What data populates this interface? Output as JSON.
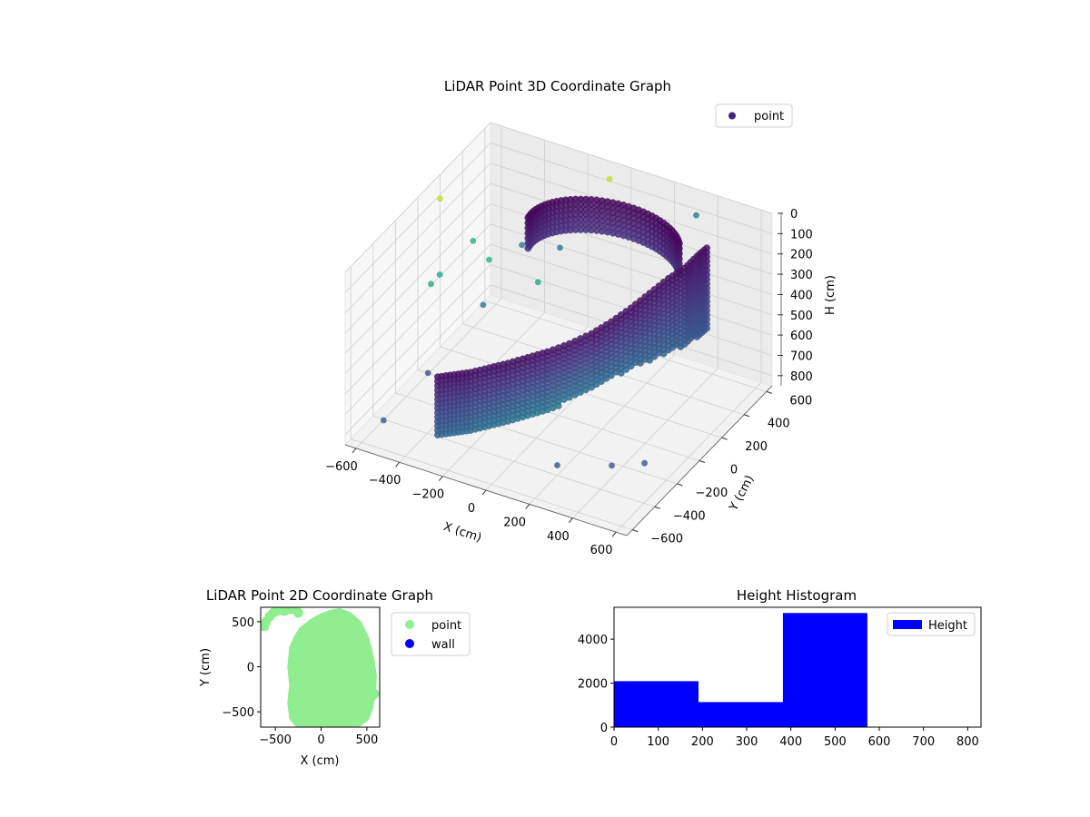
{
  "chart_data": [
    {
      "type": "scatter3d",
      "title": "LiDAR Point 3D Coordinate Graph",
      "xlabel": "X (cm)",
      "ylabel": "Y (cm)",
      "zlabel": "H (cm)",
      "xlim": [
        -650,
        650
      ],
      "ylim": [
        -650,
        650
      ],
      "zlim": [
        0,
        850
      ],
      "z_inverted": true,
      "xticks": [
        -600,
        -400,
        -200,
        0,
        200,
        400,
        600
      ],
      "yticks": [
        -600,
        -400,
        -200,
        0,
        200,
        400,
        600
      ],
      "zticks": [
        0,
        100,
        200,
        300,
        400,
        500,
        600,
        700,
        800
      ],
      "colormap": "viridis",
      "legend": {
        "placement": "top-right",
        "entries": [
          {
            "label": "point",
            "color": "#482475"
          }
        ]
      },
      "series": [
        {
          "name": "point",
          "description_shape": "curved wall arc",
          "x": [
            -300,
            -250,
            -200,
            -150,
            -100,
            -50,
            0,
            50,
            100,
            150,
            200,
            250,
            300,
            350,
            380,
            400
          ],
          "y": [
            -500,
            -450,
            -400,
            -330,
            -260,
            -180,
            -100,
            0,
            100,
            180,
            260,
            330,
            400,
            450,
            500,
            550
          ],
          "h_top": [
            480,
            480,
            480,
            480,
            480,
            480,
            480,
            480,
            470,
            440,
            400,
            350,
            300,
            260,
            220,
            200
          ],
          "h_bottom": [
            780,
            780,
            780,
            780,
            780,
            780,
            780,
            760,
            740,
            720,
            700,
            680,
            660,
            640,
            620,
            600
          ]
        }
      ],
      "outliers": [
        {
          "x": -650,
          "y": 200,
          "h": 120,
          "color": "#c2df23"
        },
        {
          "x": -100,
          "y": 650,
          "h": 90,
          "color": "#c2df23"
        },
        {
          "x": -550,
          "y": 300,
          "h": 350,
          "color": "#2ab07f"
        },
        {
          "x": -450,
          "y": 250,
          "h": 380,
          "color": "#2ab07f"
        },
        {
          "x": -350,
          "y": 350,
          "h": 330,
          "color": "#2a788e"
        },
        {
          "x": -200,
          "y": 400,
          "h": 320,
          "color": "#2a788e"
        },
        {
          "x": -600,
          "y": 100,
          "h": 420,
          "color": "#22a884"
        },
        {
          "x": -620,
          "y": 60,
          "h": 450,
          "color": "#22a884"
        },
        {
          "x": -250,
          "y": 300,
          "h": 450,
          "color": "#22a884"
        },
        {
          "x": -400,
          "y": 100,
          "h": 500,
          "color": "#2a788e"
        },
        {
          "x": 300,
          "y": 650,
          "h": 130,
          "color": "#2a788e"
        },
        {
          "x": -500,
          "y": -200,
          "h": 700,
          "color": "#3b528b"
        },
        {
          "x": -550,
          "y": -500,
          "h": 780,
          "color": "#3b528b"
        },
        {
          "x": 200,
          "y": -400,
          "h": 800,
          "color": "#3b528b"
        },
        {
          "x": 400,
          "y": -300,
          "h": 790,
          "color": "#3b528b"
        },
        {
          "x": 500,
          "y": -200,
          "h": 800,
          "color": "#3b528b"
        }
      ]
    },
    {
      "type": "scatter",
      "title": "LiDAR Point 2D Coordinate Graph",
      "xlabel": "X (cm)",
      "ylabel": "Y (cm)",
      "xlim": [
        -660,
        640
      ],
      "ylim": [
        -670,
        660
      ],
      "xticks": [
        -500,
        0,
        500
      ],
      "yticks": [
        -500,
        0,
        500
      ],
      "legend": {
        "placement": "outside-right",
        "entries": [
          {
            "label": "point",
            "color": "#90ee90"
          },
          {
            "label": "wall",
            "color": "#0000ff"
          }
        ]
      },
      "series": [
        {
          "name": "point",
          "color": "#90ee90",
          "outline": [
            [
              -250,
              -620
            ],
            [
              -300,
              -560
            ],
            [
              -320,
              -400
            ],
            [
              -300,
              -200
            ],
            [
              -320,
              0
            ],
            [
              -300,
              200
            ],
            [
              -250,
              320
            ],
            [
              -200,
              400
            ],
            [
              -100,
              480
            ],
            [
              0,
              540
            ],
            [
              100,
              580
            ],
            [
              200,
              600
            ],
            [
              300,
              560
            ],
            [
              400,
              470
            ],
            [
              480,
              300
            ],
            [
              530,
              100
            ],
            [
              560,
              -100
            ],
            [
              550,
              -300
            ],
            [
              520,
              -450
            ],
            [
              480,
              -560
            ],
            [
              400,
              -620
            ],
            [
              300,
              -650
            ],
            [
              100,
              -660
            ],
            [
              -100,
              -650
            ]
          ],
          "extra_points": [
            [
              -600,
              500
            ],
            [
              -560,
              560
            ],
            [
              -520,
              600
            ],
            [
              -480,
              620
            ],
            [
              -620,
              450
            ],
            [
              -400,
              620
            ],
            [
              -330,
              640
            ],
            [
              -300,
              650
            ],
            [
              -250,
              600
            ],
            [
              -80,
              420
            ],
            [
              -90,
              380
            ],
            [
              -120,
              400
            ],
            [
              -40,
              450
            ],
            [
              30,
              480
            ],
            [
              580,
              -300
            ],
            [
              550,
              -330
            ]
          ]
        }
      ]
    },
    {
      "type": "histogram",
      "title": "Height Histogram",
      "xlim": [
        0,
        830
      ],
      "ylim": [
        0,
        5450
      ],
      "xticks": [
        0,
        100,
        200,
        300,
        400,
        500,
        600,
        700,
        800
      ],
      "yticks": [
        0,
        2000,
        4000
      ],
      "legend": {
        "placement": "top-right",
        "entries": [
          {
            "label": "Height",
            "color": "#0000ff"
          }
        ]
      },
      "bins": [
        0,
        191,
        382,
        573,
        764
      ],
      "values": [
        2090,
        1140,
        5190,
        0
      ],
      "color": "#0000ff",
      "series": [
        {
          "name": "Height"
        }
      ]
    }
  ]
}
